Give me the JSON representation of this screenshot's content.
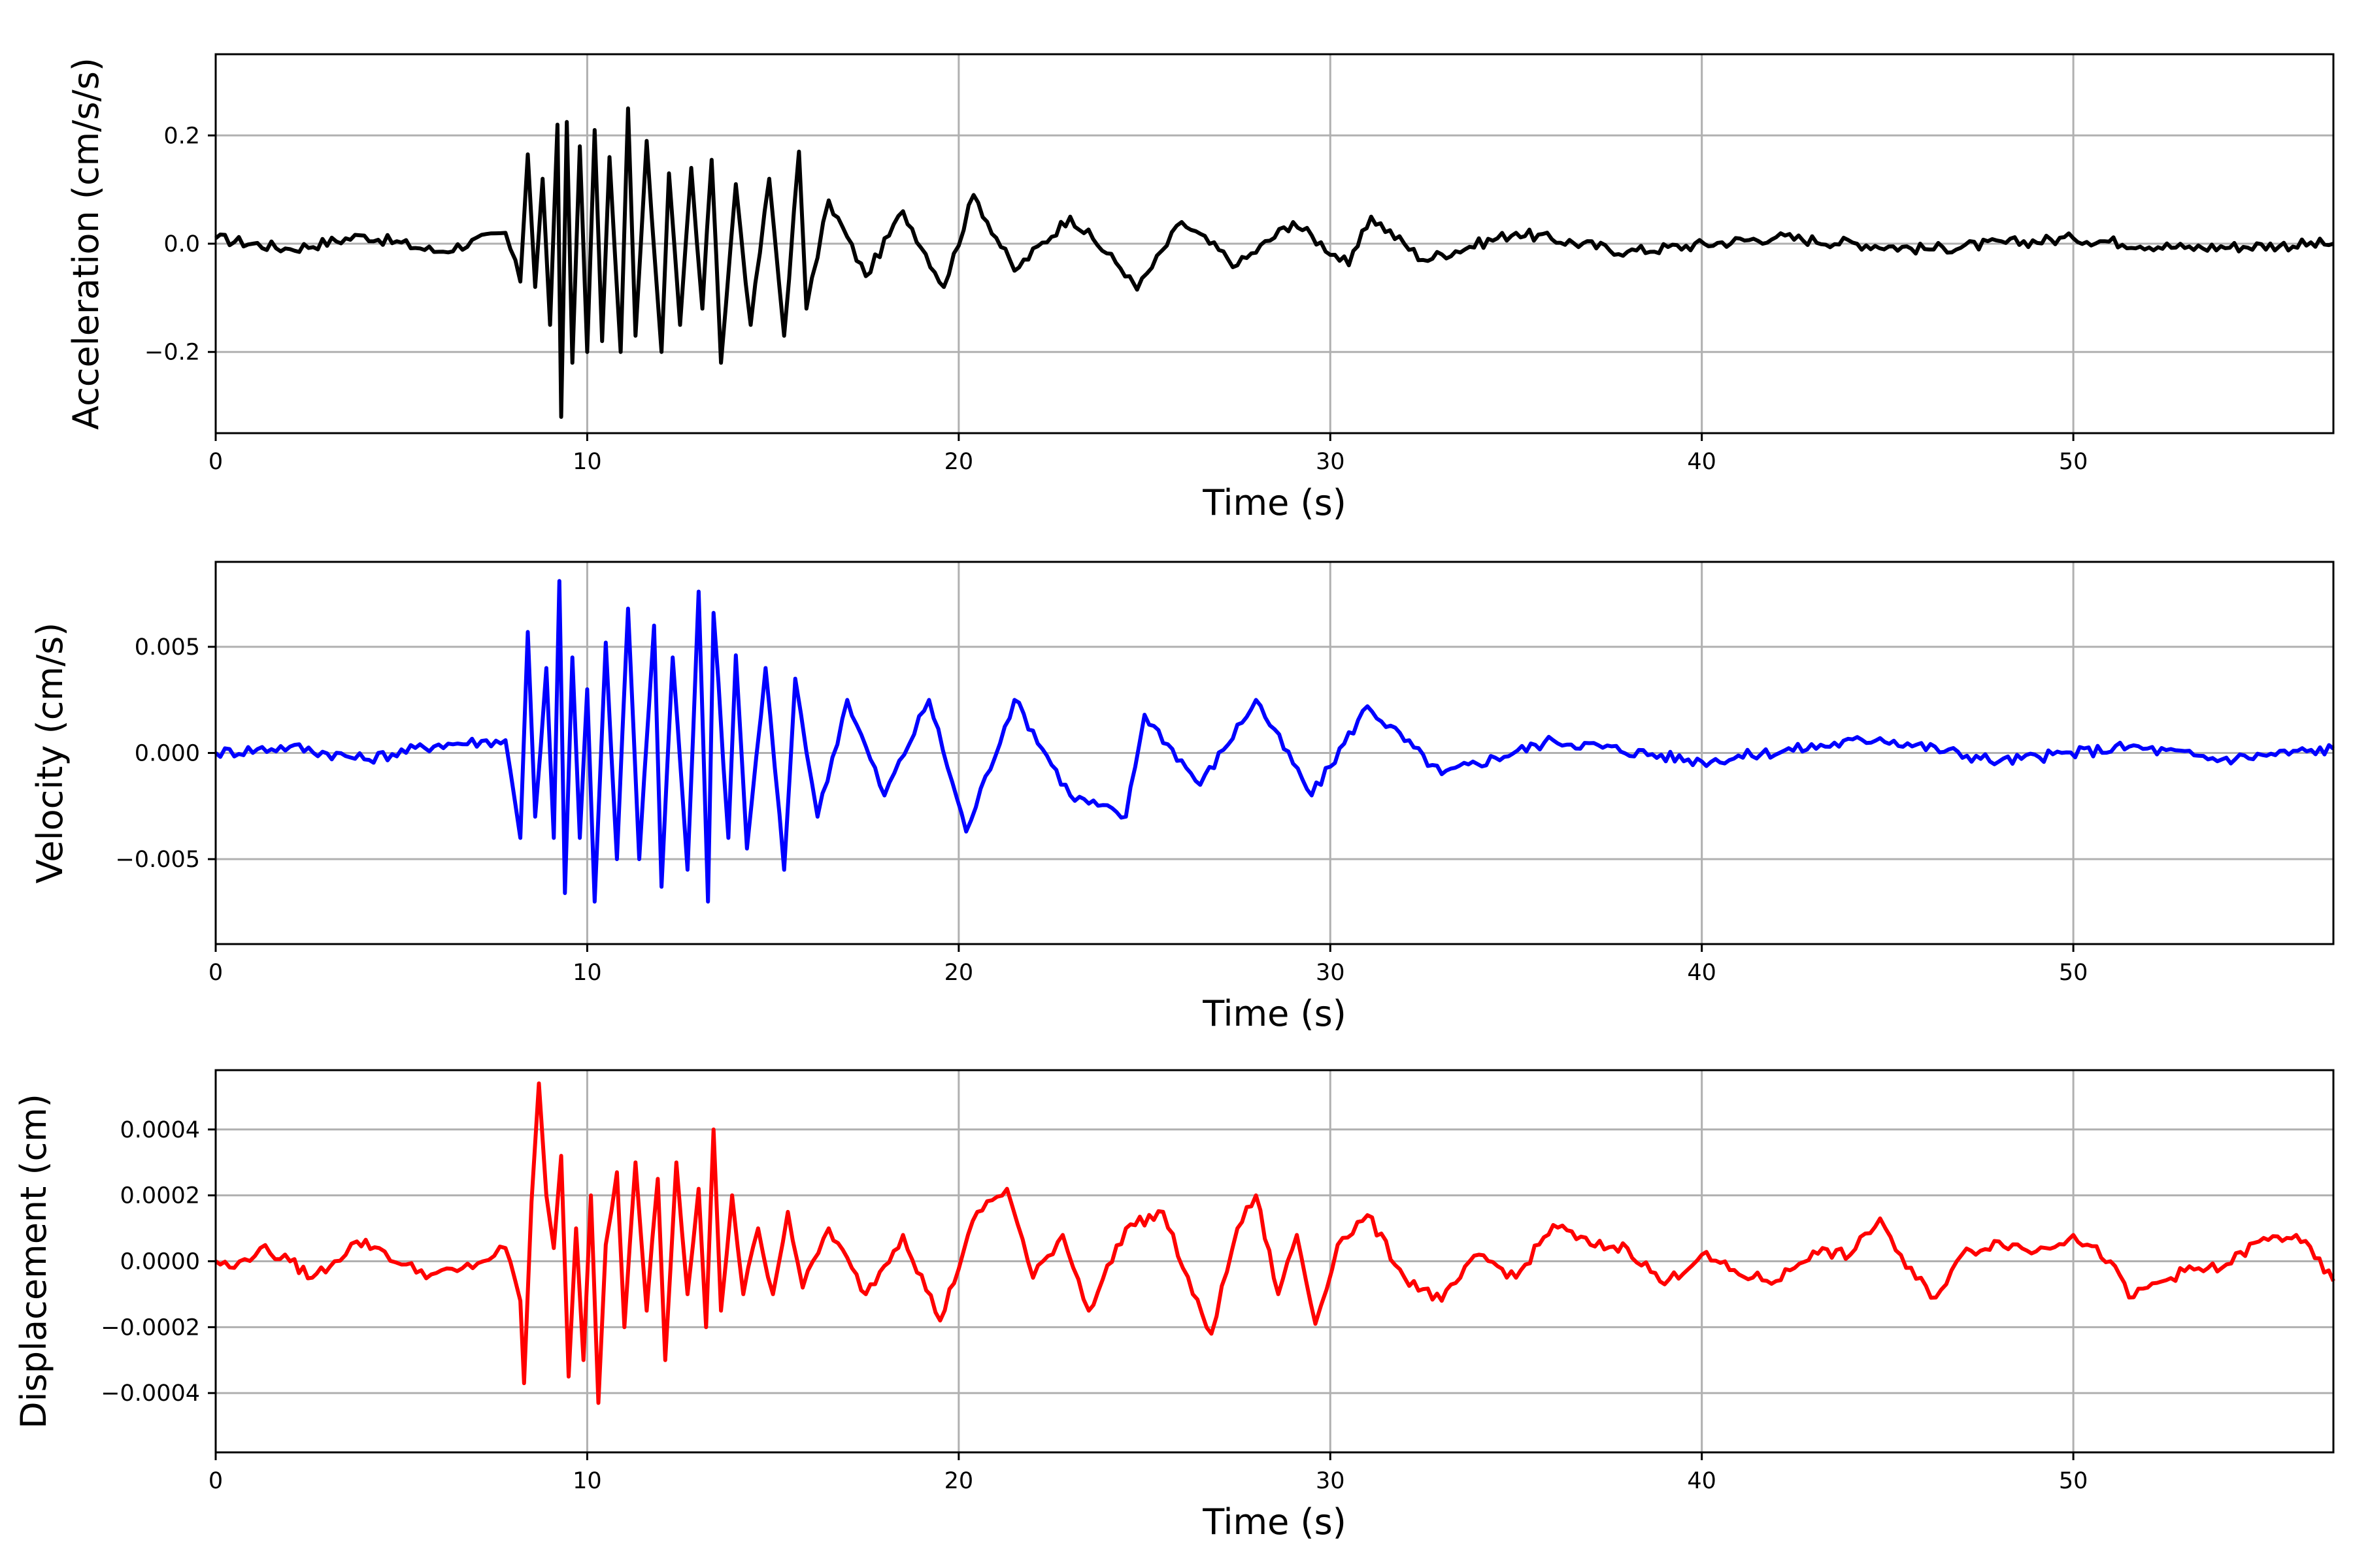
{
  "chart_data": [
    {
      "type": "line",
      "xlabel": "Time (s)",
      "ylabel": "Acceleration (cm/s/s)",
      "xlim": [
        0,
        57
      ],
      "ylim": [
        -0.35,
        0.35
      ],
      "xticks": [
        0,
        10,
        20,
        30,
        40,
        50
      ],
      "xtick_labels": [
        "0",
        "10",
        "20",
        "30",
        "40",
        "50"
      ],
      "yticks": [
        -0.2,
        0.0,
        0.2
      ],
      "ytick_labels": [
        "−0.2",
        "0.0",
        "0.2"
      ],
      "grid": true,
      "color": "#000000",
      "series": [
        {
          "x": [
            0,
            2,
            4,
            6,
            7.8,
            8.2,
            8.4,
            8.6,
            8.8,
            9.0,
            9.2,
            9.3,
            9.45,
            9.6,
            9.8,
            10.0,
            10.2,
            10.4,
            10.6,
            10.9,
            11.1,
            11.3,
            11.6,
            12.0,
            12.2,
            12.5,
            12.8,
            13.1,
            13.35,
            13.6,
            14.0,
            14.4,
            14.9,
            15.3,
            15.7,
            15.9,
            16.5,
            17.5,
            18.5,
            19.6,
            20.4,
            21.5,
            23.0,
            24.6,
            24.8,
            26.0,
            27.5,
            29.0,
            30.5,
            31.1,
            32.5,
            35.0,
            38.0,
            42.0,
            46.0,
            50.0,
            53.0,
            57.0
          ],
          "y": [
            0.01,
            -0.01,
            0.015,
            -0.015,
            0.02,
            -0.07,
            0.165,
            -0.08,
            0.12,
            -0.15,
            0.22,
            -0.32,
            0.225,
            -0.22,
            0.18,
            -0.2,
            0.21,
            -0.18,
            0.16,
            -0.2,
            0.25,
            -0.17,
            0.19,
            -0.2,
            0.13,
            -0.15,
            0.14,
            -0.12,
            0.155,
            -0.22,
            0.11,
            -0.15,
            0.12,
            -0.17,
            0.17,
            -0.12,
            0.08,
            -0.06,
            0.06,
            -0.08,
            0.09,
            -0.05,
            0.05,
            -0.06,
            -0.085,
            0.04,
            -0.04,
            0.04,
            -0.04,
            0.05,
            -0.03,
            0.02,
            -0.015,
            0.012,
            -0.01,
            0.01,
            -0.008,
            0.0
          ]
        }
      ]
    },
    {
      "type": "line",
      "xlabel": "Time (s)",
      "ylabel": "Velocity (cm/s)",
      "xlim": [
        0,
        57
      ],
      "ylim": [
        -0.009,
        0.009
      ],
      "xticks": [
        0,
        10,
        20,
        30,
        40,
        50
      ],
      "xtick_labels": [
        "0",
        "10",
        "20",
        "30",
        "40",
        "50"
      ],
      "yticks": [
        -0.005,
        0.0,
        0.005
      ],
      "ytick_labels": [
        "−0.005",
        "0.000",
        "0.005"
      ],
      "grid": true,
      "color": "#0000ff",
      "series": [
        {
          "x": [
            0,
            2,
            4,
            6,
            7.8,
            8.2,
            8.4,
            8.6,
            8.9,
            9.1,
            9.25,
            9.4,
            9.6,
            9.8,
            10.0,
            10.2,
            10.5,
            10.8,
            11.1,
            11.4,
            11.8,
            12.0,
            12.3,
            12.7,
            13.0,
            13.25,
            13.4,
            13.8,
            14.0,
            14.3,
            14.8,
            15.3,
            15.6,
            16.2,
            17.0,
            18.0,
            19.2,
            20.2,
            21.5,
            23.0,
            24.5,
            25.0,
            26.5,
            28.0,
            29.5,
            31.0,
            33.0,
            36.0,
            40.0,
            44.8,
            48.0,
            51.5,
            54.0,
            57.0
          ],
          "y": [
            0.0,
            0.0003,
            -0.0003,
            0.0004,
            0.0006,
            -0.004,
            0.0057,
            -0.003,
            0.004,
            -0.004,
            0.0081,
            -0.0066,
            0.0045,
            -0.004,
            0.003,
            -0.007,
            0.0052,
            -0.005,
            0.0068,
            -0.005,
            0.006,
            -0.0063,
            0.0045,
            -0.0055,
            0.0076,
            -0.007,
            0.0066,
            -0.004,
            0.0046,
            -0.0045,
            0.004,
            -0.0055,
            0.0035,
            -0.003,
            0.0025,
            -0.002,
            0.0025,
            -0.0037,
            0.0025,
            -0.002,
            -0.003,
            0.0018,
            -0.0015,
            0.0025,
            -0.002,
            0.0022,
            -0.001,
            0.0006,
            -0.0004,
            0.0007,
            -0.0004,
            0.0003,
            -0.0003,
            0.0002
          ]
        }
      ]
    },
    {
      "type": "line",
      "xlabel": "Time (s)",
      "ylabel": "Displacement (cm)",
      "xlim": [
        0,
        57
      ],
      "ylim": [
        -0.00058,
        0.00058
      ],
      "xticks": [
        0,
        10,
        20,
        30,
        40,
        50
      ],
      "xtick_labels": [
        "0",
        "10",
        "20",
        "30",
        "40",
        "50"
      ],
      "yticks": [
        -0.0004,
        -0.0002,
        0.0,
        0.0002,
        0.0004
      ],
      "ytick_labels": [
        "−0.0004",
        "−0.0002",
        "0.0000",
        "0.0002",
        "0.0004"
      ],
      "grid": true,
      "color": "#ff0000",
      "series": [
        {
          "x": [
            0,
            0.5,
            1.2,
            2.0,
            2.6,
            3.2,
            3.8,
            4.4,
            5.0,
            5.8,
            6.5,
            7.2,
            7.8,
            8.2,
            8.3,
            8.5,
            8.7,
            8.9,
            9.1,
            9.3,
            9.5,
            9.7,
            9.9,
            10.1,
            10.3,
            10.5,
            10.8,
            11.0,
            11.3,
            11.6,
            11.9,
            12.1,
            12.4,
            12.7,
            13.0,
            13.2,
            13.4,
            13.6,
            13.9,
            14.2,
            14.6,
            15.0,
            15.4,
            15.8,
            16.5,
            17.5,
            18.5,
            19.5,
            20.5,
            21.3,
            22.0,
            22.8,
            23.5,
            24.5,
            25.5,
            26.3,
            26.8,
            27.5,
            28.0,
            28.6,
            29.1,
            29.6,
            30.2,
            31.0,
            32.0,
            33.0,
            34.0,
            35.0,
            36.0,
            37.0,
            38.0,
            39.0,
            40.0,
            41.0,
            42.0,
            43.0,
            44.0,
            44.8,
            45.5,
            46.3,
            47.0,
            48.0,
            49.0,
            50.0,
            51.0,
            51.5,
            52.0,
            53.0,
            54.0,
            55.0,
            56.0,
            57.0
          ],
          "y": [
            0.0,
            -2e-05,
            4e-05,
            0.0,
            -5e-05,
            0.0,
            6e-05,
            4e-05,
            -1e-05,
            -4e-05,
            -3e-05,
            0.0,
            4e-05,
            -0.00012,
            -0.00037,
            0.00018,
            0.00054,
            0.0002,
            4e-05,
            0.00032,
            -0.00035,
            0.0001,
            -0.0003,
            0.0002,
            -0.00043,
            5e-05,
            0.00027,
            -0.0002,
            0.0003,
            -0.00015,
            0.00025,
            -0.0003,
            0.0003,
            -0.0001,
            0.00022,
            -0.0002,
            0.0004,
            -0.00015,
            0.0002,
            -0.0001,
            0.0001,
            -0.0001,
            0.00015,
            -8e-05,
            0.0001,
            -0.0001,
            8e-05,
            -0.00018,
            0.00015,
            0.00022,
            -5e-05,
            8e-05,
            -0.00015,
            0.0001,
            0.00015,
            -0.0001,
            -0.00022,
            0.0001,
            0.0002,
            -0.0001,
            8e-05,
            -0.00019,
            5e-05,
            0.00014,
            -5e-05,
            -0.00012,
            2e-05,
            -5e-05,
            0.00011,
            5e-05,
            4e-05,
            -7e-05,
            2e-05,
            -4e-05,
            -6e-05,
            3e-05,
            2e-05,
            0.00013,
            -2e-05,
            -0.00011,
            2e-05,
            6e-05,
            3e-05,
            8e-05,
            0.0,
            -0.00011,
            -8e-05,
            -3e-05,
            -2e-05,
            6e-05,
            8e-05,
            -6e-05
          ]
        }
      ]
    }
  ]
}
